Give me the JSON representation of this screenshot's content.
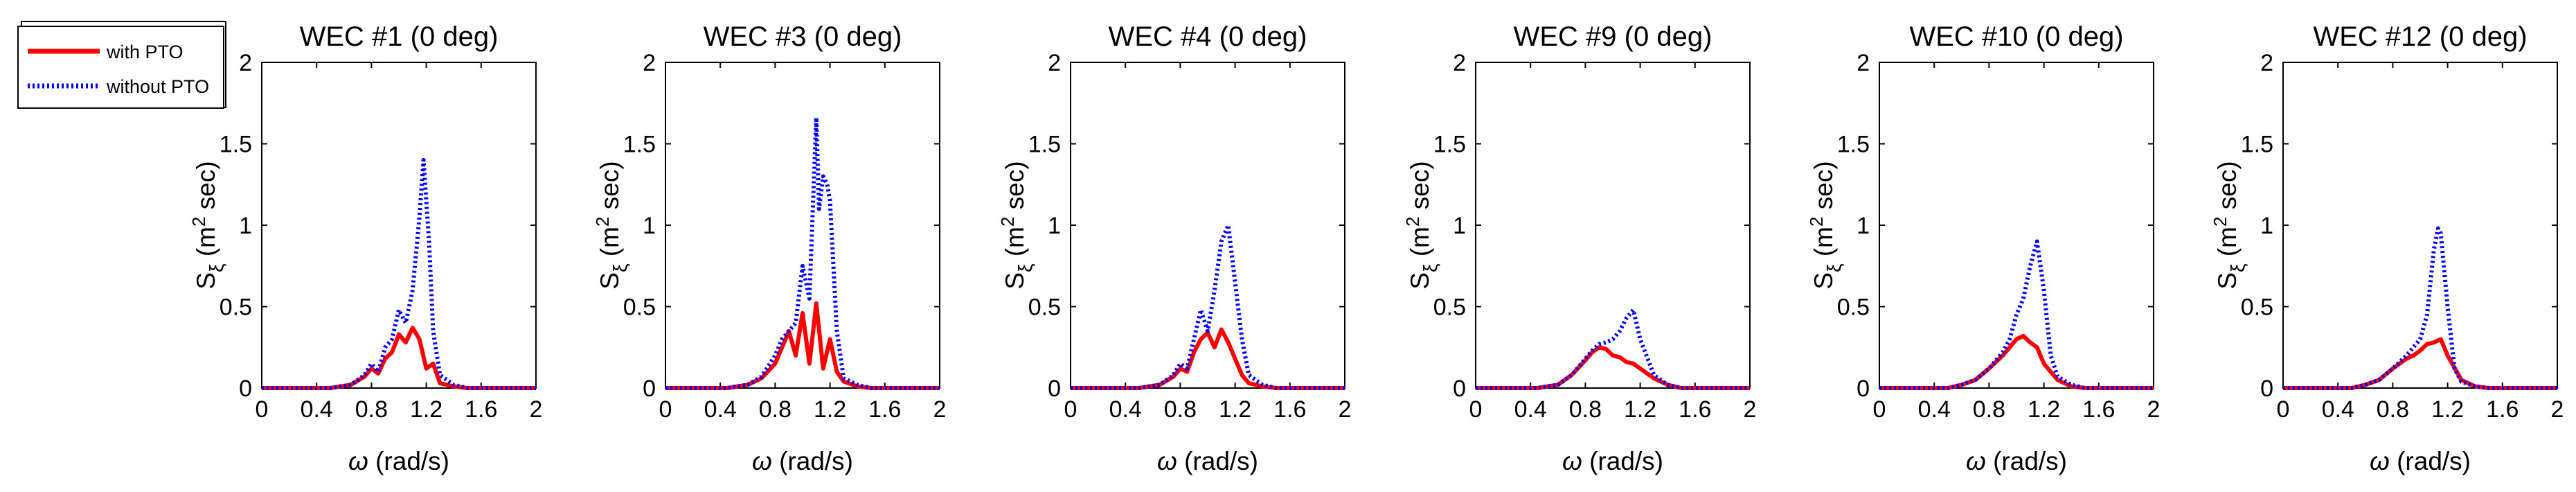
{
  "legend": {
    "entries": [
      {
        "label": "with PTO",
        "color": "#ff0000",
        "style": "solid"
      },
      {
        "label": "without PTO",
        "color": "#0000ff",
        "style": "dotted"
      }
    ]
  },
  "chart_data": [
    {
      "type": "line",
      "title": "WEC #1 (0 deg)",
      "xlabel_symbol": "ω",
      "xlabel_text": "(rad/s)",
      "ylabel_base": "S",
      "ylabel_sub": "ξ",
      "ylabel_paren": "(m",
      "ylabel_sup": "2",
      "ylabel_tail": " sec)",
      "xlim": [
        0,
        2
      ],
      "ylim": [
        0,
        2
      ],
      "xticks": [
        "0",
        "0.4",
        "0.8",
        "1.2",
        "1.6",
        "2"
      ],
      "yticks": [
        "0",
        "0.5",
        "1",
        "1.5",
        "2"
      ],
      "series": [
        {
          "name": "with PTO",
          "x": [
            0,
            0.5,
            0.65,
            0.75,
            0.8,
            0.85,
            0.9,
            0.95,
            1.0,
            1.05,
            1.1,
            1.15,
            1.2,
            1.25,
            1.3,
            1.4,
            1.5,
            2.0
          ],
          "y": [
            0,
            0,
            0.02,
            0.07,
            0.12,
            0.09,
            0.18,
            0.22,
            0.33,
            0.28,
            0.37,
            0.3,
            0.12,
            0.15,
            0.03,
            0.01,
            0,
            0
          ]
        },
        {
          "name": "without PTO",
          "x": [
            0,
            0.5,
            0.65,
            0.75,
            0.8,
            0.85,
            0.9,
            0.95,
            1.0,
            1.05,
            1.1,
            1.15,
            1.18,
            1.22,
            1.25,
            1.3,
            1.4,
            1.5,
            2.0
          ],
          "y": [
            0,
            0,
            0.02,
            0.08,
            0.15,
            0.1,
            0.25,
            0.3,
            0.48,
            0.4,
            0.6,
            1.05,
            1.4,
            0.9,
            0.35,
            0.08,
            0.02,
            0,
            0
          ]
        }
      ]
    },
    {
      "type": "line",
      "title": "WEC #3 (0 deg)",
      "xlabel_symbol": "ω",
      "xlabel_text": "(rad/s)",
      "ylabel_base": "S",
      "ylabel_sub": "ξ",
      "ylabel_paren": "(m",
      "ylabel_sup": "2",
      "ylabel_tail": " sec)",
      "xlim": [
        0,
        2
      ],
      "ylim": [
        0,
        2
      ],
      "xticks": [
        "0",
        "0.4",
        "0.8",
        "1.2",
        "1.6",
        "2"
      ],
      "yticks": [
        "0",
        "0.5",
        "1",
        "1.5",
        "2"
      ],
      "series": [
        {
          "name": "with PTO",
          "x": [
            0,
            0.45,
            0.6,
            0.7,
            0.8,
            0.85,
            0.9,
            0.95,
            1.0,
            1.05,
            1.1,
            1.15,
            1.2,
            1.25,
            1.3,
            1.4,
            1.5,
            2.0
          ],
          "y": [
            0,
            0,
            0.02,
            0.06,
            0.15,
            0.25,
            0.35,
            0.2,
            0.46,
            0.15,
            0.52,
            0.12,
            0.3,
            0.1,
            0.04,
            0.01,
            0,
            0
          ]
        },
        {
          "name": "without PTO",
          "x": [
            0,
            0.45,
            0.6,
            0.7,
            0.8,
            0.85,
            0.9,
            0.95,
            1.0,
            1.05,
            1.1,
            1.12,
            1.15,
            1.18,
            1.2,
            1.25,
            1.3,
            1.4,
            1.5,
            2.0
          ],
          "y": [
            0,
            0,
            0.02,
            0.07,
            0.2,
            0.3,
            0.35,
            0.4,
            0.75,
            0.55,
            1.66,
            1.1,
            1.3,
            1.25,
            1.15,
            0.35,
            0.06,
            0.02,
            0,
            0
          ]
        }
      ]
    },
    {
      "type": "line",
      "title": "WEC #4 (0 deg)",
      "xlabel_symbol": "ω",
      "xlabel_text": "(rad/s)",
      "ylabel_base": "S",
      "ylabel_sub": "ξ",
      "ylabel_paren": "(m",
      "ylabel_sup": "2",
      "ylabel_tail": " sec)",
      "xlim": [
        0,
        2
      ],
      "ylim": [
        0,
        2
      ],
      "xticks": [
        "0",
        "0.4",
        "0.8",
        "1.2",
        "1.6",
        "2"
      ],
      "yticks": [
        "0",
        "0.5",
        "1",
        "1.5",
        "2"
      ],
      "series": [
        {
          "name": "with PTO",
          "x": [
            0,
            0.5,
            0.65,
            0.75,
            0.8,
            0.85,
            0.9,
            0.95,
            1.0,
            1.05,
            1.1,
            1.15,
            1.2,
            1.25,
            1.3,
            1.4,
            1.5,
            2.0
          ],
          "y": [
            0,
            0,
            0.02,
            0.07,
            0.12,
            0.1,
            0.22,
            0.3,
            0.34,
            0.25,
            0.36,
            0.28,
            0.18,
            0.08,
            0.03,
            0.01,
            0,
            0
          ]
        },
        {
          "name": "without PTO",
          "x": [
            0,
            0.5,
            0.65,
            0.75,
            0.8,
            0.85,
            0.9,
            0.95,
            1.0,
            1.05,
            1.1,
            1.15,
            1.2,
            1.25,
            1.3,
            1.4,
            1.5,
            2.0
          ],
          "y": [
            0,
            0,
            0.02,
            0.08,
            0.15,
            0.12,
            0.3,
            0.48,
            0.35,
            0.6,
            0.9,
            1.0,
            0.65,
            0.3,
            0.08,
            0.02,
            0,
            0
          ]
        }
      ]
    },
    {
      "type": "line",
      "title": "WEC #9 (0 deg)",
      "xlabel_symbol": "ω",
      "xlabel_text": "(rad/s)",
      "ylabel_base": "S",
      "ylabel_sub": "ξ",
      "ylabel_paren": "(m",
      "ylabel_sup": "2",
      "ylabel_tail": " sec)",
      "xlim": [
        0,
        2
      ],
      "ylim": [
        0,
        2
      ],
      "xticks": [
        "0",
        "0.4",
        "0.8",
        "1.2",
        "1.6",
        "2"
      ],
      "yticks": [
        "0",
        "0.5",
        "1",
        "1.5",
        "2"
      ],
      "series": [
        {
          "name": "with PTO",
          "x": [
            0,
            0.45,
            0.6,
            0.7,
            0.8,
            0.85,
            0.9,
            0.95,
            1.0,
            1.05,
            1.1,
            1.15,
            1.2,
            1.3,
            1.4,
            1.5,
            2.0
          ],
          "y": [
            0,
            0,
            0.02,
            0.08,
            0.17,
            0.22,
            0.25,
            0.24,
            0.2,
            0.19,
            0.16,
            0.15,
            0.12,
            0.06,
            0.02,
            0,
            0
          ]
        },
        {
          "name": "without PTO",
          "x": [
            0,
            0.45,
            0.6,
            0.7,
            0.8,
            0.85,
            0.9,
            0.95,
            1.0,
            1.05,
            1.1,
            1.15,
            1.2,
            1.3,
            1.4,
            1.5,
            2.0
          ],
          "y": [
            0,
            0,
            0.02,
            0.08,
            0.18,
            0.23,
            0.27,
            0.28,
            0.3,
            0.35,
            0.43,
            0.48,
            0.3,
            0.08,
            0.02,
            0,
            0
          ]
        }
      ]
    },
    {
      "type": "line",
      "title": "WEC #10 (0 deg)",
      "xlabel_symbol": "ω",
      "xlabel_text": "(rad/s)",
      "ylabel_base": "S",
      "ylabel_sub": "ξ",
      "ylabel_paren": "(m",
      "ylabel_sup": "2",
      "ylabel_tail": " sec)",
      "xlim": [
        0,
        2
      ],
      "ylim": [
        0,
        2
      ],
      "xticks": [
        "0",
        "0.4",
        "0.8",
        "1.2",
        "1.6",
        "2"
      ],
      "yticks": [
        "0",
        "0.5",
        "1",
        "1.5",
        "2"
      ],
      "series": [
        {
          "name": "with PTO",
          "x": [
            0,
            0.5,
            0.6,
            0.7,
            0.8,
            0.9,
            0.95,
            1.0,
            1.05,
            1.1,
            1.15,
            1.2,
            1.3,
            1.4,
            1.5,
            2.0
          ],
          "y": [
            0,
            0,
            0.02,
            0.05,
            0.12,
            0.2,
            0.25,
            0.3,
            0.32,
            0.28,
            0.25,
            0.15,
            0.05,
            0.01,
            0,
            0
          ]
        },
        {
          "name": "without PTO",
          "x": [
            0,
            0.5,
            0.6,
            0.7,
            0.8,
            0.9,
            0.95,
            1.0,
            1.05,
            1.1,
            1.15,
            1.2,
            1.25,
            1.3,
            1.4,
            1.5,
            2.0
          ],
          "y": [
            0,
            0,
            0.02,
            0.05,
            0.12,
            0.22,
            0.3,
            0.45,
            0.55,
            0.75,
            0.9,
            0.6,
            0.2,
            0.07,
            0.02,
            0,
            0
          ]
        }
      ]
    },
    {
      "type": "line",
      "title": "WEC #12 (0 deg)",
      "xlabel_symbol": "ω",
      "xlabel_text": "(rad/s)",
      "ylabel_base": "S",
      "ylabel_sub": "ξ",
      "ylabel_paren": "(m",
      "ylabel_sup": "2",
      "ylabel_tail": " sec)",
      "xlim": [
        0,
        2
      ],
      "ylim": [
        0,
        2
      ],
      "xticks": [
        "0",
        "0.4",
        "0.8",
        "1.2",
        "1.6",
        "2"
      ],
      "yticks": [
        "0",
        "0.5",
        "1",
        "1.5",
        "2"
      ],
      "series": [
        {
          "name": "with PTO",
          "x": [
            0,
            0.5,
            0.6,
            0.7,
            0.8,
            0.9,
            0.95,
            1.0,
            1.05,
            1.1,
            1.15,
            1.2,
            1.3,
            1.4,
            1.5,
            2.0
          ],
          "y": [
            0,
            0,
            0.02,
            0.05,
            0.12,
            0.18,
            0.2,
            0.23,
            0.27,
            0.28,
            0.3,
            0.2,
            0.05,
            0.01,
            0,
            0
          ]
        },
        {
          "name": "without PTO",
          "x": [
            0,
            0.5,
            0.6,
            0.7,
            0.8,
            0.9,
            0.95,
            1.0,
            1.05,
            1.1,
            1.13,
            1.15,
            1.2,
            1.25,
            1.3,
            1.4,
            1.5,
            2.0
          ],
          "y": [
            0,
            0,
            0.02,
            0.05,
            0.12,
            0.2,
            0.25,
            0.3,
            0.45,
            0.85,
            0.98,
            0.95,
            0.5,
            0.12,
            0.04,
            0.01,
            0,
            0
          ]
        }
      ]
    }
  ]
}
